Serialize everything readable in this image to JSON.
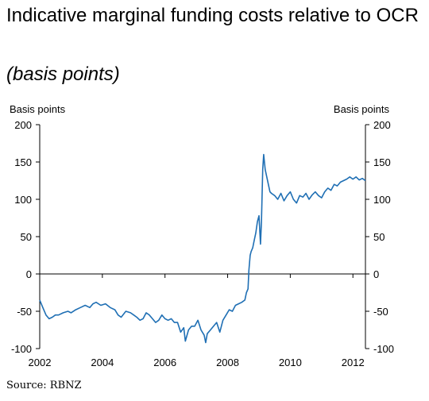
{
  "title": "Indicative marginal funding costs relative to OCR",
  "subtitle": "(basis points)",
  "source": "Source: RBNZ",
  "chart_data": {
    "type": "line",
    "ylabel_left": "Basis points",
    "ylabel_right": "Basis points",
    "ylim": [
      -100,
      200
    ],
    "yticks": [
      200,
      150,
      100,
      50,
      0,
      -50,
      -100
    ],
    "xlim": [
      2002,
      2012.4
    ],
    "xticks": [
      2002,
      2004,
      2006,
      2008,
      2010,
      2012
    ],
    "line_color": "#1f6fb4",
    "series": [
      {
        "x": [
          2002.0,
          2002.1,
          2002.2,
          2002.3,
          2002.4,
          2002.5,
          2002.6,
          2002.75,
          2002.9,
          2003.0,
          2003.15,
          2003.3,
          2003.45,
          2003.6,
          2003.7,
          2003.8,
          2003.95,
          2004.1,
          2004.25,
          2004.4,
          2004.5,
          2004.6,
          2004.75,
          2004.9,
          2005.0,
          2005.1,
          2005.2,
          2005.3,
          2005.4,
          2005.5,
          2005.6,
          2005.7,
          2005.8,
          2005.9,
          2006.0,
          2006.1,
          2006.2,
          2006.3,
          2006.4,
          2006.5,
          2006.6,
          2006.65,
          2006.75,
          2006.85,
          2006.95,
          2007.05,
          2007.15,
          2007.25,
          2007.3,
          2007.35,
          2007.45,
          2007.55,
          2007.65,
          2007.75,
          2007.85,
          2007.95,
          2008.05,
          2008.15,
          2008.25,
          2008.35,
          2008.45,
          2008.55,
          2008.6,
          2008.65,
          2008.68,
          2008.72,
          2008.75,
          2008.8,
          2008.85,
          2008.9,
          2008.95,
          2009.0,
          2009.05,
          2009.08,
          2009.12,
          2009.15,
          2009.2,
          2009.25,
          2009.3,
          2009.35,
          2009.4,
          2009.5,
          2009.6,
          2009.7,
          2009.8,
          2009.9,
          2010.0,
          2010.1,
          2010.2,
          2010.3,
          2010.4,
          2010.5,
          2010.6,
          2010.7,
          2010.8,
          2010.9,
          2011.0,
          2011.1,
          2011.2,
          2011.3,
          2011.4,
          2011.5,
          2011.6,
          2011.7,
          2011.8,
          2011.9,
          2012.0,
          2012.1,
          2012.2,
          2012.3,
          2012.4
        ],
        "values": [
          -35,
          -45,
          -55,
          -60,
          -58,
          -55,
          -55,
          -52,
          -50,
          -52,
          -48,
          -45,
          -42,
          -45,
          -40,
          -38,
          -42,
          -40,
          -45,
          -48,
          -55,
          -58,
          -50,
          -52,
          -55,
          -58,
          -62,
          -60,
          -52,
          -55,
          -60,
          -65,
          -62,
          -55,
          -60,
          -62,
          -60,
          -65,
          -65,
          -78,
          -72,
          -90,
          -75,
          -70,
          -70,
          -62,
          -75,
          -82,
          -92,
          -80,
          -75,
          -70,
          -65,
          -78,
          -62,
          -55,
          -48,
          -50,
          -42,
          -40,
          -38,
          -35,
          -25,
          -20,
          5,
          25,
          30,
          35,
          45,
          55,
          70,
          78,
          40,
          70,
          140,
          160,
          140,
          130,
          120,
          110,
          108,
          105,
          100,
          108,
          98,
          105,
          110,
          100,
          95,
          105,
          103,
          108,
          100,
          106,
          110,
          105,
          102,
          110,
          115,
          112,
          120,
          118,
          123,
          125,
          127,
          130,
          127,
          130,
          126,
          128,
          125
        ]
      }
    ]
  }
}
